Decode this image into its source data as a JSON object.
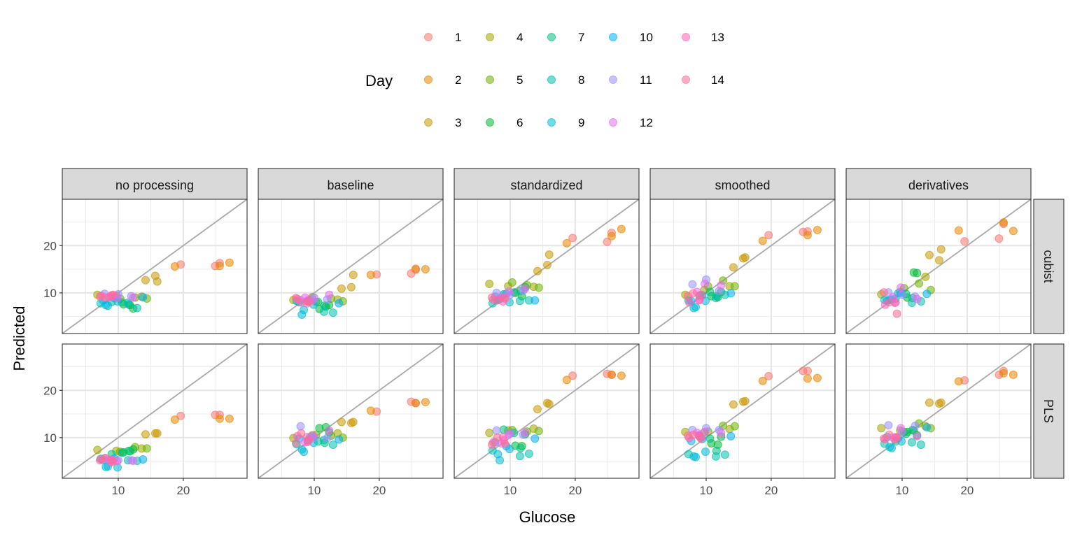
{
  "chart_data": {
    "type": "scatter",
    "xlabel": "Glucose",
    "ylabel": "Predicted",
    "xlim": [
      1.4,
      29.8
    ],
    "ylim": [
      1.4,
      29.8
    ],
    "x_ticks": [
      10,
      20
    ],
    "y_ticks": [
      10,
      20
    ],
    "grid": true,
    "reference_line": "y = x",
    "legend": {
      "title": "Day",
      "placement": "top",
      "entries": [
        {
          "label": "1",
          "color": "#F8766D"
        },
        {
          "label": "2",
          "color": "#E58700"
        },
        {
          "label": "3",
          "color": "#C99800"
        },
        {
          "label": "4",
          "color": "#A3A500"
        },
        {
          "label": "5",
          "color": "#6BB100"
        },
        {
          "label": "6",
          "color": "#00BA38"
        },
        {
          "label": "7",
          "color": "#00BF7D"
        },
        {
          "label": "8",
          "color": "#00C0AF"
        },
        {
          "label": "9",
          "color": "#00BCD8"
        },
        {
          "label": "10",
          "color": "#00B0F6"
        },
        {
          "label": "11",
          "color": "#9590FF"
        },
        {
          "label": "12",
          "color": "#E76BF3"
        },
        {
          "label": "13",
          "color": "#FF62BC"
        },
        {
          "label": "14",
          "color": "#FF6C91"
        }
      ]
    },
    "columns": [
      "no processing",
      "baseline",
      "standardized",
      "smoothed",
      "derivatives"
    ],
    "rows": [
      "cubist",
      "PLS"
    ],
    "observed_glucose": [
      {
        "day": 1,
        "x": [
          19.6,
          24.9,
          25.6
        ]
      },
      {
        "day": 2,
        "x": [
          18.7,
          25.6,
          27.1
        ]
      },
      {
        "day": 3,
        "x": [
          14.2,
          15.7,
          16.0
        ]
      },
      {
        "day": 4,
        "x": [
          6.8,
          9.7,
          13.6
        ]
      },
      {
        "day": 5,
        "x": [
          10.3,
          12.6,
          14.4
        ]
      },
      {
        "day": 6,
        "x": [
          10.8,
          11.8,
          12.3
        ]
      },
      {
        "day": 7,
        "x": [
          9.0,
          10.6,
          11.6
        ]
      },
      {
        "day": 8,
        "x": [
          7.3,
          11.5,
          12.9
        ]
      },
      {
        "day": 9,
        "x": [
          8.1,
          8.4,
          9.9
        ]
      },
      {
        "day": 10,
        "x": [
          7.7,
          9.4,
          13.8
        ]
      },
      {
        "day": 11,
        "x": [
          7.9,
          10.0,
          12.0
        ]
      },
      {
        "day": 12,
        "x": [
          8.6,
          9.8,
          12.3
        ]
      },
      {
        "day": 13,
        "x": [
          7.4,
          8.9,
          9.0
        ]
      },
      {
        "day": 14,
        "x": [
          7.2,
          8.0,
          9.2
        ]
      }
    ],
    "panels": [
      {
        "row": "cubist",
        "column": "no processing",
        "predicted": [
          [
            16.0,
            15.7,
            16.3
          ],
          [
            15.6,
            15.7,
            16.4
          ],
          [
            12.7,
            13.6,
            12.4
          ],
          [
            9.6,
            9.4,
            9.2
          ],
          [
            8.8,
            9.0,
            8.8
          ],
          [
            7.6,
            7.4,
            6.7
          ],
          [
            8.1,
            8.0,
            7.6
          ],
          [
            7.8,
            7.9,
            6.8
          ],
          [
            7.4,
            7.3,
            8.2
          ],
          [
            8.4,
            8.9,
            9.1
          ],
          [
            9.8,
            9.7,
            9.3
          ],
          [
            9.1,
            8.9,
            9.0
          ],
          [
            9.4,
            9.3,
            9.5
          ],
          [
            9.2,
            9.0,
            9.6
          ]
        ]
      },
      {
        "row": "cubist",
        "column": "baseline",
        "predicted": [
          [
            13.9,
            14.1,
            14.9
          ],
          [
            13.8,
            15.1,
            15.0
          ],
          [
            10.9,
            11.2,
            13.8
          ],
          [
            8.5,
            9.1,
            8.6
          ],
          [
            8.1,
            8.8,
            8.2
          ],
          [
            6.6,
            7.1,
            7.4
          ],
          [
            8.2,
            8.1,
            7.3
          ],
          [
            8.3,
            6.0,
            5.8
          ],
          [
            5.4,
            6.4,
            7.5
          ],
          [
            8.0,
            8.4,
            7.8
          ],
          [
            8.5,
            9.0,
            8.6
          ],
          [
            9.0,
            8.5,
            9.6
          ],
          [
            8.7,
            7.8,
            8.4
          ],
          [
            8.9,
            8.0,
            8.1
          ]
        ]
      },
      {
        "row": "cubist",
        "column": "standardized",
        "predicted": [
          [
            21.6,
            20.8,
            22.7
          ],
          [
            20.5,
            22.0,
            23.5
          ],
          [
            14.6,
            15.9,
            18.1
          ],
          [
            11.9,
            11.4,
            11.3
          ],
          [
            12.2,
            11.6,
            11.1
          ],
          [
            10.0,
            9.3,
            11.2
          ],
          [
            9.7,
            10.1,
            10.4
          ],
          [
            7.8,
            8.3,
            8.4
          ],
          [
            8.5,
            8.7,
            8.0
          ],
          [
            9.2,
            9.8,
            8.4
          ],
          [
            10.0,
            9.6,
            10.5
          ],
          [
            9.1,
            10.3,
            10.9
          ],
          [
            8.6,
            8.2,
            9.0
          ],
          [
            9.0,
            8.4,
            8.8
          ]
        ]
      },
      {
        "row": "cubist",
        "column": "smoothed",
        "predicted": [
          [
            22.2,
            22.9,
            23.0
          ],
          [
            21.0,
            22.2,
            23.3
          ],
          [
            15.4,
            17.3,
            17.5
          ],
          [
            9.6,
            10.6,
            11.4
          ],
          [
            11.4,
            12.6,
            11.4
          ],
          [
            9.3,
            9.1,
            10.2
          ],
          [
            9.4,
            10.2,
            9.3
          ],
          [
            8.4,
            8.9,
            9.6
          ],
          [
            6.8,
            7.0,
            8.3
          ],
          [
            8.3,
            9.5,
            9.9
          ],
          [
            11.8,
            12.8,
            10.4
          ],
          [
            10.2,
            11.9,
            11.6
          ],
          [
            8.0,
            8.4,
            8.6
          ],
          [
            9.3,
            9.9,
            9.6
          ]
        ]
      },
      {
        "row": "cubist",
        "column": "derivatives",
        "predicted": [
          [
            20.9,
            21.5,
            24.6
          ],
          [
            23.2,
            24.9,
            23.1
          ],
          [
            18.0,
            16.9,
            19.2
          ],
          [
            9.7,
            10.2,
            13.4
          ],
          [
            11.0,
            12.0,
            10.6
          ],
          [
            9.0,
            14.3,
            14.2
          ],
          [
            8.8,
            9.8,
            8.9
          ],
          [
            8.5,
            7.9,
            8.2
          ],
          [
            8.5,
            8.6,
            10.0
          ],
          [
            8.3,
            9.9,
            9.8
          ],
          [
            10.1,
            9.6,
            9.2
          ],
          [
            9.1,
            11.1,
            8.7
          ],
          [
            7.5,
            7.9,
            8.0
          ],
          [
            10.1,
            8.0,
            5.6
          ]
        ]
      },
      {
        "row": "PLS",
        "column": "no processing",
        "predicted": [
          [
            14.6,
            14.8,
            14.8
          ],
          [
            13.8,
            14.0,
            14.0
          ],
          [
            10.7,
            10.9,
            10.9
          ],
          [
            7.4,
            7.2,
            7.7
          ],
          [
            7.0,
            8.0,
            7.7
          ],
          [
            6.9,
            7.1,
            7.5
          ],
          [
            6.5,
            6.8,
            7.2
          ],
          [
            5.5,
            5.2,
            5.1
          ],
          [
            3.8,
            3.9,
            3.7
          ],
          [
            5.3,
            5.6,
            5.4
          ],
          [
            5.6,
            5.2,
            5.2
          ],
          [
            5.3,
            5.0,
            5.1
          ],
          [
            5.4,
            4.8,
            5.3
          ],
          [
            5.2,
            5.7,
            5.0
          ]
        ]
      },
      {
        "row": "PLS",
        "column": "baseline",
        "predicted": [
          [
            15.5,
            17.6,
            17.3
          ],
          [
            15.7,
            17.3,
            17.5
          ],
          [
            13.3,
            13.1,
            13.3
          ],
          [
            9.9,
            10.5,
            10.9
          ],
          [
            10.6,
            10.4,
            10.0
          ],
          [
            12.0,
            12.2,
            11.1
          ],
          [
            9.4,
            9.2,
            8.9
          ],
          [
            8.6,
            9.5,
            8.5
          ],
          [
            7.5,
            7.0,
            8.9
          ],
          [
            9.8,
            10.1,
            9.6
          ],
          [
            12.4,
            10.0,
            9.9
          ],
          [
            9.0,
            10.4,
            11.5
          ],
          [
            10.3,
            10.1,
            9.1
          ],
          [
            8.8,
            10.9,
            9.5
          ]
        ]
      },
      {
        "row": "PLS",
        "column": "standardized",
        "predicted": [
          [
            23.1,
            23.5,
            23.3
          ],
          [
            22.2,
            23.3,
            23.1
          ],
          [
            16.0,
            17.3,
            17.1
          ],
          [
            11.0,
            11.5,
            11.9
          ],
          [
            11.6,
            11.3,
            11.4
          ],
          [
            8.3,
            8.2,
            10.7
          ],
          [
            11.7,
            11.0,
            7.8
          ],
          [
            7.3,
            6.1,
            6.6
          ],
          [
            6.5,
            5.2,
            7.6
          ],
          [
            9.0,
            8.2,
            9.8
          ],
          [
            11.5,
            10.9,
            10.6
          ],
          [
            8.8,
            10.7,
            11.1
          ],
          [
            9.0,
            10.1,
            9.4
          ],
          [
            8.5,
            10.0,
            8.7
          ]
        ]
      },
      {
        "row": "PLS",
        "column": "smoothed",
        "predicted": [
          [
            23.0,
            24.1,
            24.1
          ],
          [
            22.0,
            22.5,
            22.6
          ],
          [
            17.0,
            17.6,
            17.7
          ],
          [
            11.2,
            11.1,
            11.8
          ],
          [
            11.3,
            12.5,
            12.4
          ],
          [
            8.8,
            8.5,
            10.2
          ],
          [
            10.4,
            9.8,
            7.2
          ],
          [
            6.5,
            6.0,
            6.4
          ],
          [
            6.0,
            5.9,
            7.0
          ],
          [
            9.3,
            9.7,
            10.3
          ],
          [
            11.6,
            12.0,
            11.6
          ],
          [
            11.0,
            11.2,
            11.0
          ],
          [
            9.9,
            10.5,
            10.2
          ],
          [
            10.4,
            10.6,
            9.8
          ]
        ]
      },
      {
        "row": "PLS",
        "column": "derivatives",
        "predicted": [
          [
            22.1,
            23.3,
            24.1
          ],
          [
            21.9,
            23.6,
            23.3
          ],
          [
            17.4,
            17.2,
            17.4
          ],
          [
            12.0,
            11.5,
            12.4
          ],
          [
            11.2,
            13.0,
            12.0
          ],
          [
            11.2,
            11.5,
            10.5
          ],
          [
            9.2,
            10.8,
            11.6
          ],
          [
            8.7,
            9.0,
            8.5
          ],
          [
            8.0,
            7.8,
            9.2
          ],
          [
            10.1,
            9.9,
            12.2
          ],
          [
            12.6,
            11.3,
            12.5
          ],
          [
            10.0,
            12.0,
            10.3
          ],
          [
            9.7,
            9.6,
            10.1
          ],
          [
            9.8,
            10.6,
            10.0
          ]
        ]
      }
    ]
  }
}
